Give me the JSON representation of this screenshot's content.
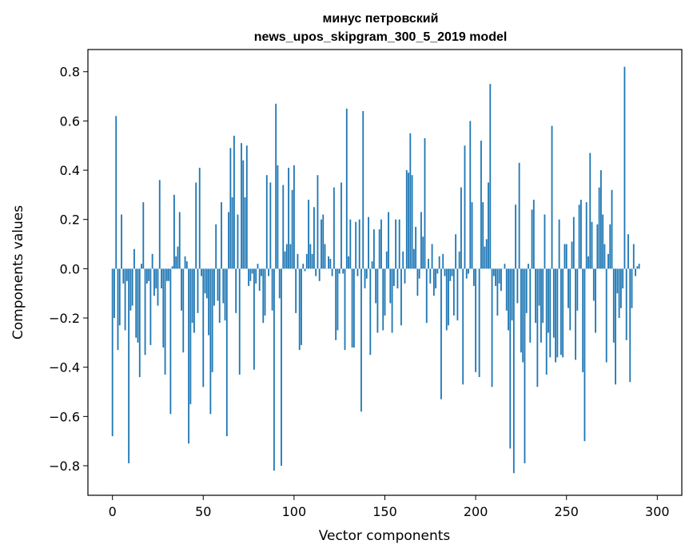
{
  "chart_data": {
    "type": "bar",
    "title_line1": "минус петровский",
    "title_line2": "news_upos_skipgram_300_5_2019 model",
    "xlabel": "Vector components",
    "ylabel": "Components values",
    "xlim": [
      -13.5,
      313.5
    ],
    "ylim": [
      -0.92,
      0.89
    ],
    "xticks": [
      0,
      50,
      100,
      150,
      200,
      250,
      300
    ],
    "yticks": [
      -0.8,
      -0.6,
      -0.4,
      -0.2,
      0.0,
      0.2,
      0.4,
      0.6,
      0.8
    ],
    "grid": false,
    "bar_color": "#1f77b4",
    "values": [
      -0.68,
      -0.2,
      0.62,
      -0.33,
      -0.23,
      0.22,
      -0.06,
      -0.25,
      -0.05,
      -0.79,
      -0.17,
      -0.15,
      0.08,
      -0.28,
      -0.3,
      -0.44,
      0.02,
      0.27,
      -0.35,
      -0.06,
      -0.05,
      -0.31,
      0.06,
      -0.11,
      -0.08,
      -0.15,
      0.36,
      -0.08,
      -0.32,
      -0.43,
      -0.05,
      -0.05,
      -0.59,
      0.01,
      0.3,
      0.05,
      0.09,
      0.23,
      -0.17,
      -0.34,
      0.05,
      0.03,
      -0.71,
      -0.55,
      -0.22,
      -0.26,
      0.35,
      -0.18,
      0.41,
      -0.03,
      -0.48,
      -0.1,
      -0.12,
      -0.27,
      -0.59,
      -0.42,
      -0.15,
      0.18,
      -0.13,
      -0.22,
      0.27,
      -0.14,
      -0.21,
      -0.68,
      0.23,
      0.49,
      0.29,
      0.54,
      -0.18,
      0.22,
      -0.43,
      0.51,
      0.44,
      0.29,
      0.5,
      -0.07,
      -0.05,
      -0.02,
      -0.41,
      -0.06,
      0.02,
      -0.09,
      -0.03,
      -0.22,
      -0.19,
      0.38,
      -0.03,
      0.35,
      -0.17,
      -0.82,
      0.67,
      0.42,
      -0.12,
      -0.8,
      0.34,
      0.07,
      0.1,
      0.41,
      0.1,
      0.32,
      0.42,
      -0.18,
      0.06,
      -0.33,
      -0.31,
      0.02,
      -0.01,
      0.06,
      0.28,
      0.1,
      0.06,
      0.25,
      -0.03,
      0.38,
      -0.05,
      0.2,
      0.22,
      0.1,
      0.0,
      0.05,
      0.04,
      -0.03,
      0.33,
      -0.29,
      -0.25,
      -0.02,
      0.35,
      -0.02,
      -0.33,
      0.65,
      0.05,
      0.2,
      -0.32,
      -0.32,
      0.19,
      -0.03,
      0.2,
      -0.58,
      0.64,
      -0.08,
      -0.04,
      0.21,
      -0.35,
      0.03,
      0.16,
      -0.14,
      -0.26,
      0.16,
      0.2,
      -0.25,
      -0.19,
      0.07,
      0.23,
      -0.14,
      -0.26,
      -0.07,
      0.2,
      -0.08,
      0.2,
      -0.23,
      0.07,
      -0.06,
      0.4,
      0.39,
      0.55,
      0.38,
      0.08,
      0.17,
      -0.11,
      -0.04,
      0.23,
      0.13,
      0.53,
      -0.22,
      0.04,
      -0.06,
      0.1,
      -0.11,
      -0.08,
      -0.02,
      0.05,
      -0.53,
      0.06,
      -0.03,
      -0.25,
      -0.23,
      -0.05,
      -0.03,
      -0.19,
      0.14,
      -0.21,
      0.07,
      0.33,
      -0.47,
      0.5,
      -0.04,
      -0.02,
      0.6,
      0.27,
      -0.07,
      -0.42,
      0.0,
      -0.44,
      0.52,
      0.27,
      0.09,
      0.12,
      0.35,
      0.75,
      -0.48,
      -0.03,
      -0.07,
      -0.19,
      -0.06,
      -0.09,
      0.0,
      0.02,
      -0.17,
      -0.25,
      -0.73,
      -0.21,
      -0.83,
      0.26,
      -0.14,
      0.43,
      -0.34,
      -0.38,
      -0.79,
      -0.18,
      0.02,
      -0.3,
      0.24,
      0.28,
      -0.22,
      -0.48,
      -0.15,
      -0.3,
      -0.22,
      0.22,
      -0.43,
      -0.26,
      -0.36,
      0.58,
      -0.28,
      -0.38,
      -0.36,
      0.2,
      -0.35,
      -0.36,
      0.1,
      0.1,
      -0.16,
      -0.25,
      0.11,
      0.21,
      -0.37,
      -0.17,
      0.26,
      0.28,
      -0.42,
      -0.7,
      0.27,
      0.05,
      0.47,
      0.19,
      -0.13,
      -0.26,
      0.18,
      0.33,
      0.4,
      0.22,
      0.1,
      -0.38,
      0.06,
      0.18,
      0.32,
      -0.3,
      -0.47,
      -0.1,
      -0.2,
      -0.16,
      -0.08,
      0.82,
      -0.29,
      0.14,
      -0.46,
      -0.16,
      0.1,
      -0.03,
      0.01,
      0.02
    ]
  }
}
